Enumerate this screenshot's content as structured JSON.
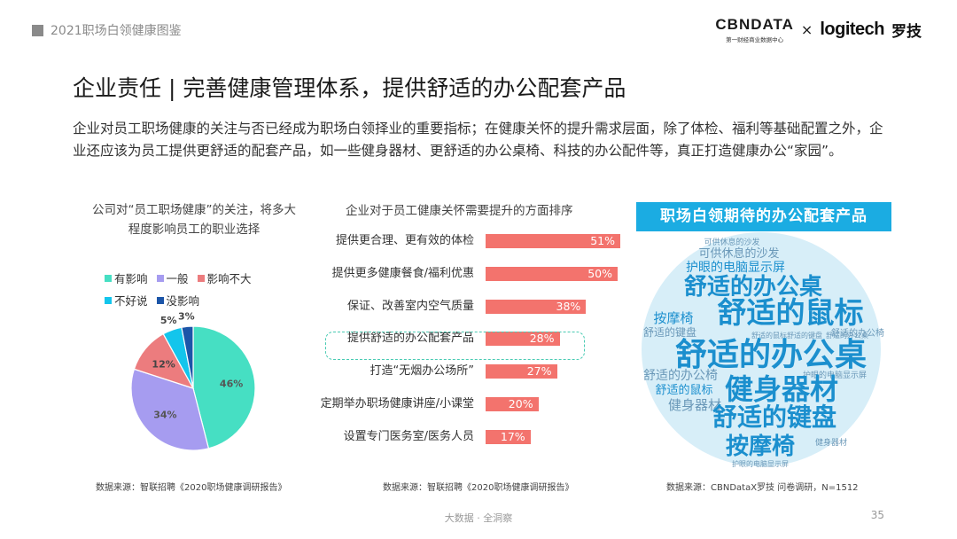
{
  "header": {
    "report_label": "2021职场白领健康图鉴",
    "brand_cbn": "CBNDATA",
    "brand_cbn_sub": "第一财经商业数据中心",
    "brand_x": "×",
    "brand_logitech": "logitech",
    "brand_luoji": "罗技"
  },
  "page_title": "企业责任 | 完善健康管理体系，提供舒适的办公配套产品",
  "intro": "企业对员工职场健康的关注与否已经成为职场白领择业的重要指标；在健康关怀的提升需求层面，除了体检、福利等基础配置之外，企业还应该为员工提供更舒适的配套产品，如一些健身器材、更舒适的办公桌椅、科技的办公配件等，真正打造健康办公“家园”。",
  "chart_data": [
    {
      "type": "pie",
      "title": "公司对“员工职场健康”的关注，将多大程度影响员工的职业选择",
      "categories": [
        "有影响",
        "一般",
        "影响不大",
        "不好说",
        "没影响"
      ],
      "values": [
        46,
        34,
        12,
        5,
        3
      ],
      "value_labels": [
        "46%",
        "34%",
        "12%",
        "5%",
        "3%"
      ],
      "colors": [
        "#46dfc3",
        "#a69cf0",
        "#ec7c7e",
        "#13c5ec",
        "#1c55a8"
      ],
      "legend_position": "top"
    },
    {
      "type": "bar",
      "orientation": "horizontal",
      "title": "企业对于员工健康关怀需要提升的方面排序",
      "categories": [
        "提供更合理、更有效的体检",
        "提供更多健康餐食/福利优惠",
        "保证、改善室内空气质量",
        "提供舒适的办公配套产品",
        "打造“无烟办公场所”",
        "定期举办职场健康讲座/小课堂",
        "设置专门医务室/医务人员"
      ],
      "values": [
        51,
        50,
        38,
        28,
        27,
        20,
        17
      ],
      "value_labels": [
        "51%",
        "50%",
        "38%",
        "28%",
        "27%",
        "20%",
        "17%"
      ],
      "highlight_category": "提供舒适的办公配套产品",
      "bar_color": "#f3736d"
    }
  ],
  "word_cloud": {
    "title": "职场白领期待的办公配套产品",
    "background": "#d7eef8",
    "words": [
      "可供休息的沙发",
      "可供休息的沙发",
      "护眼的电脑显示屏",
      "舒适的办公桌",
      "按摩椅",
      "舒适的鼠标",
      "舒适的键盘",
      "舒适的鼠标",
      "舒适的键盘",
      "舒适的办公桌",
      "舒适的办公椅",
      "舒适的办公桌",
      "护眼的电脑显示屏",
      "舒适的办公椅",
      "舒适的鼠标",
      "健身器材",
      "健身器材",
      "舒适的键盘",
      "按摩椅",
      "健身器材",
      "护眼的电脑显示屏"
    ]
  },
  "sources": {
    "pie": "数据来源：智联招聘《2020职场健康调研报告》",
    "bar": "数据来源：智联招聘《2020职场健康调研报告》",
    "cloud": "数据来源：CBNDataX罗技 问卷调研，N=1512"
  },
  "footer": "大数据 · 全洞察",
  "page_number": "35"
}
